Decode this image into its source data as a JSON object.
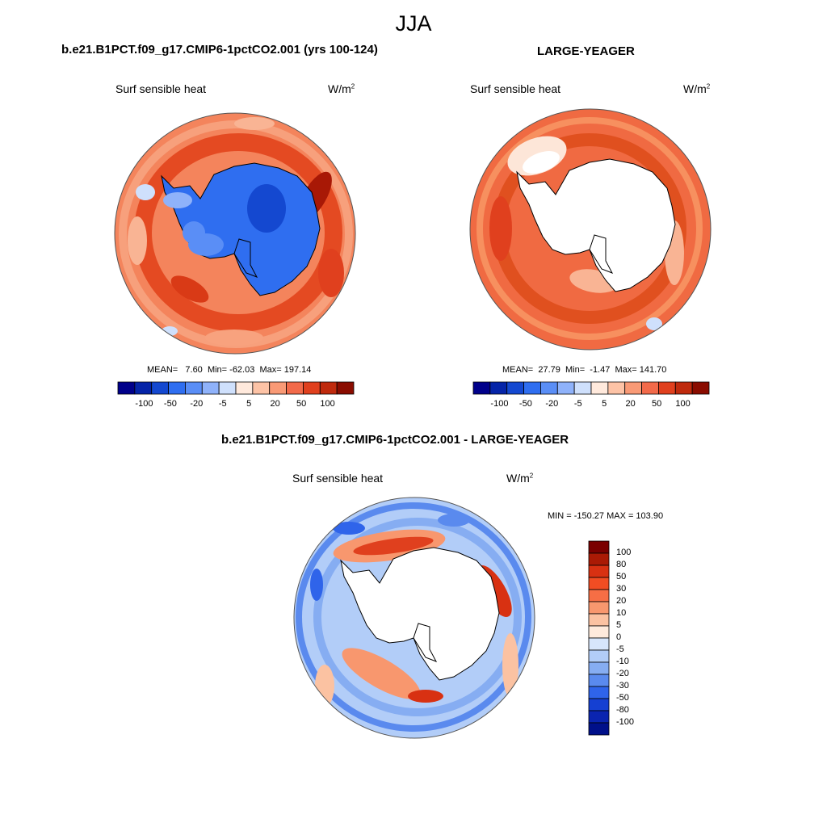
{
  "title": "JJA",
  "panels": [
    {
      "title": "b.e21.B1PCT.f09_g17.CMIP6-1pctCO2.001 (yrs 100-124)",
      "variable": "Surf sensible heat",
      "units": "W/m",
      "units_exp": "2",
      "mean_label": "MEAN=",
      "mean": "7.60",
      "min_label": "Min=",
      "min": "-62.03",
      "max_label": "Max=",
      "max": "197.14"
    },
    {
      "title": "LARGE-YEAGER",
      "variable": "Surf sensible heat",
      "units": "W/m",
      "units_exp": "2",
      "mean_label": "MEAN=",
      "mean": "27.79",
      "min_label": "Min=",
      "min": "-1.47",
      "max_label": "Max=",
      "max": "141.70"
    },
    {
      "title": "b.e21.B1PCT.f09_g17.CMIP6-1pctCO2.001 - LARGE-YEAGER",
      "variable": "Surf sensible heat",
      "units": "W/m",
      "units_exp": "2",
      "minmax_text": "MIN = -150.27 MAX = 103.90"
    }
  ],
  "chart_data": [
    {
      "type": "heatmap",
      "projection": "south-polar-stereographic",
      "title": "b.e21.B1PCT.f09_g17.CMIP6-1pctCO2.001 (yrs 100-124)",
      "variable": "Surf sensible heat",
      "units": "W/m2",
      "mean": 7.6,
      "min": -62.03,
      "max": 197.14,
      "colorbar_ticks": [
        "-100",
        "-50",
        "-20",
        "-5",
        "5",
        "20",
        "50",
        "100"
      ],
      "colorbar_orientation": "horizontal"
    },
    {
      "type": "heatmap",
      "projection": "south-polar-stereographic",
      "title": "LARGE-YEAGER",
      "variable": "Surf sensible heat",
      "units": "W/m2",
      "mean": 27.79,
      "min": -1.47,
      "max": 141.7,
      "colorbar_ticks": [
        "-100",
        "-50",
        "-20",
        "-5",
        "5",
        "20",
        "50",
        "100"
      ],
      "colorbar_orientation": "horizontal"
    },
    {
      "type": "heatmap",
      "projection": "south-polar-stereographic",
      "title": "b.e21.B1PCT.f09_g17.CMIP6-1pctCO2.001 - LARGE-YEAGER",
      "variable": "Surf sensible heat",
      "units": "W/m2",
      "min": -150.27,
      "max": 103.9,
      "colorbar_ticks": [
        "100",
        "80",
        "50",
        "30",
        "20",
        "10",
        "5",
        "0",
        "-5",
        "-10",
        "-20",
        "-30",
        "-50",
        "-80",
        "-100"
      ],
      "colorbar_orientation": "vertical"
    }
  ],
  "colorbars": {
    "horizontal_colors": [
      "#00008a",
      "#0524a8",
      "#1448d0",
      "#2f6ef0",
      "#5a8ef6",
      "#8fb2fa",
      "#cfe0fc",
      "#ffe9dc",
      "#fdc3a6",
      "#f99a76",
      "#f26a4a",
      "#e0401e",
      "#bf2a0d",
      "#8a0c00"
    ],
    "vertical_colors": [
      "#7a0000",
      "#aa1a05",
      "#d83112",
      "#f14d23",
      "#f66e45",
      "#f8976e",
      "#fbc2a2",
      "#feeadc",
      "#d7e6fb",
      "#b2cdf8",
      "#86adf2",
      "#5a8aee",
      "#2f64ea",
      "#1540d2",
      "#0a24b0",
      "#00108a"
    ],
    "horizontal_ticks": [
      "-100",
      "-50",
      "-20",
      "-5",
      "5",
      "20",
      "50",
      "100"
    ],
    "vertical_ticks": [
      "100",
      "80",
      "50",
      "30",
      "20",
      "10",
      "5",
      "0",
      "-5",
      "-10",
      "-20",
      "-30",
      "-50",
      "-80",
      "-100"
    ]
  }
}
